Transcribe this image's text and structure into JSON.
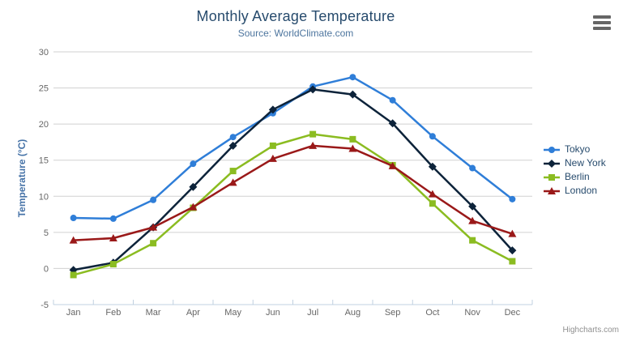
{
  "credits": {
    "label": "Highcharts.com"
  },
  "export_menu": {
    "tooltip": "Chart context menu"
  },
  "chart_data": {
    "type": "line",
    "title": "Monthly Average Temperature",
    "subtitle": "Source: WorldClimate.com",
    "xlabel": "",
    "ylabel": "Temperature (°C)",
    "ylim": [
      -5,
      30
    ],
    "ytick_step": 5,
    "yticks": [
      -5,
      0,
      5,
      10,
      15,
      20,
      25,
      30
    ],
    "grid": true,
    "legend_position": "right",
    "categories": [
      "Jan",
      "Feb",
      "Mar",
      "Apr",
      "May",
      "Jun",
      "Jul",
      "Aug",
      "Sep",
      "Oct",
      "Nov",
      "Dec"
    ],
    "series": [
      {
        "name": "Tokyo",
        "color": "#2f7ed8",
        "marker": "circle",
        "values": [
          7.0,
          6.9,
          9.5,
          14.5,
          18.2,
          21.5,
          25.2,
          26.5,
          23.3,
          18.3,
          13.9,
          9.6
        ]
      },
      {
        "name": "New York",
        "color": "#0d233a",
        "marker": "diamond",
        "values": [
          -0.2,
          0.8,
          5.7,
          11.3,
          17.0,
          22.0,
          24.8,
          24.1,
          20.1,
          14.1,
          8.6,
          2.5
        ]
      },
      {
        "name": "Berlin",
        "color": "#8bbc21",
        "marker": "square",
        "values": [
          -0.9,
          0.6,
          3.5,
          8.4,
          13.5,
          17.0,
          18.6,
          17.9,
          14.3,
          9.0,
          3.9,
          1.0
        ]
      },
      {
        "name": "London",
        "color": "#9a1919",
        "marker": "triangle",
        "values": [
          3.9,
          4.2,
          5.7,
          8.5,
          11.9,
          15.2,
          17.0,
          16.6,
          14.2,
          10.3,
          6.6,
          4.8
        ]
      }
    ],
    "style": {
      "grid_color": "#d0d0d0",
      "axis_line_color": "#c0d0e0",
      "tick_label_color": "#666666"
    }
  }
}
